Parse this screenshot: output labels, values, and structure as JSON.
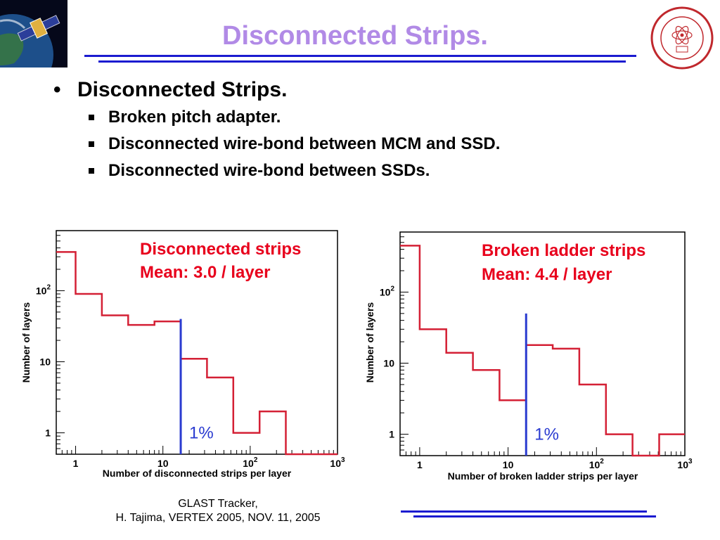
{
  "slide": {
    "title": "Disconnected Strips.",
    "bullet": "Disconnected Strips.",
    "sub_bullets": [
      "Broken pitch adapter.",
      "Disconnected wire-bond between MCM and SSD.",
      "Disconnected wire-bond between SSDs."
    ],
    "footer_line1": "GLAST Tracker,",
    "footer_line2": "H. Tajima, VERTEX 2005, NOV. 11, 2005",
    "colors": {
      "title": "#b18ae6",
      "rule": "#1b1bd0",
      "histogram": "#d42035",
      "cut_line": "#2a3bd0",
      "annotation": "#e8001c"
    },
    "logos": {
      "left": "glast-satellite-logo",
      "right": "slac-seal-logo"
    }
  },
  "chart_data": [
    {
      "type": "histogram",
      "annotation_line1": "Disconnected strips",
      "annotation_line2": "Mean: 3.0 / layer",
      "xlabel": "Number of disconnected strips per layer",
      "ylabel": "Number of layers",
      "xscale": "log",
      "yscale": "log",
      "xlim": [
        0.6,
        1000
      ],
      "ylim": [
        0.5,
        700
      ],
      "x_tick_labels": [
        "1",
        "10",
        "10^2",
        "10^3"
      ],
      "y_tick_labels": [
        "1",
        "10",
        "10^2"
      ],
      "bin_edges": [
        0.6,
        1,
        2,
        4,
        8,
        16,
        32,
        64,
        128,
        256,
        1000
      ],
      "counts": [
        350,
        90,
        45,
        33,
        37,
        11,
        6,
        1,
        2,
        0.5
      ],
      "cut_value": 16,
      "cut_top": 40,
      "cut_label": "1%"
    },
    {
      "type": "histogram",
      "annotation_line1": "Broken ladder strips",
      "annotation_line2": "Mean: 4.4 / layer",
      "xlabel": "Number of broken ladder strips per layer",
      "ylabel": "Number of layers",
      "xscale": "log",
      "yscale": "log",
      "xlim": [
        0.6,
        1000
      ],
      "ylim": [
        0.5,
        700
      ],
      "x_tick_labels": [
        "1",
        "10",
        "10^2",
        "10^3"
      ],
      "y_tick_labels": [
        "1",
        "10",
        "10^2"
      ],
      "bin_edges": [
        0.6,
        1,
        2,
        4,
        8,
        16,
        32,
        64,
        128,
        256,
        512,
        1000
      ],
      "counts": [
        450,
        30,
        14,
        8,
        3,
        18,
        16,
        5,
        1,
        0.5,
        1
      ],
      "cut_value": 16,
      "cut_top": 50,
      "cut_label": "1%"
    }
  ]
}
